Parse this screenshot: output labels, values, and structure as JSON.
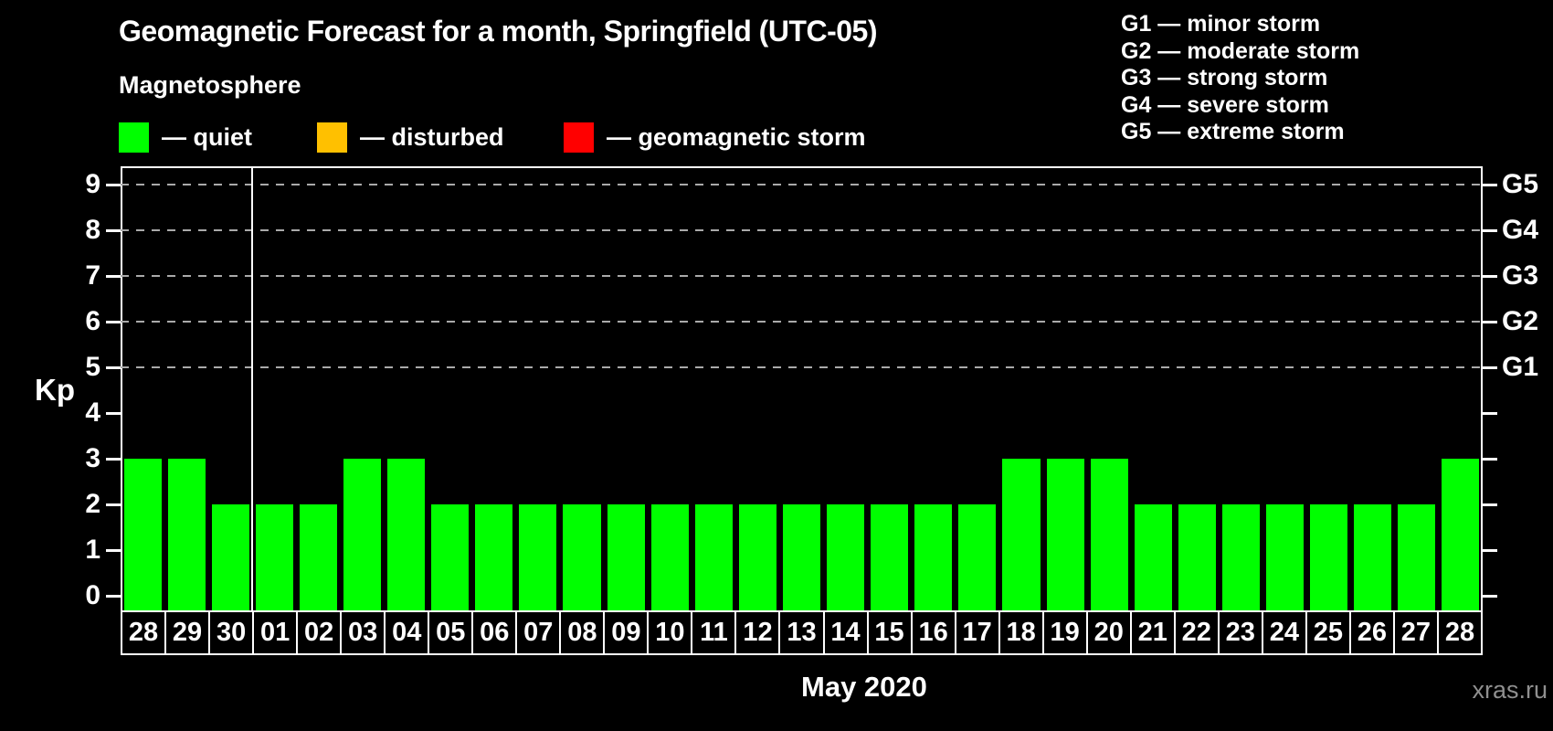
{
  "chart_data": {
    "type": "bar",
    "title": "Geomagnetic Forecast for a month, Springfield (UTC-05)",
    "subtitle": "Magnetosphere",
    "legend": [
      {
        "name": "quiet",
        "label": "— quiet",
        "color": "#00ff00"
      },
      {
        "name": "disturbed",
        "label": "— disturbed",
        "color": "#ffc000"
      },
      {
        "name": "geomagnetic-storm",
        "label": "— geomagnetic storm",
        "color": "#ff0000"
      }
    ],
    "g_scale_legend": [
      "G1 — minor storm",
      "G2 — moderate storm",
      "G3 — strong storm",
      "G4 — severe storm",
      "G5 — extreme storm"
    ],
    "ylabel": "Kp",
    "ylim": [
      0,
      9.4
    ],
    "yticks": [
      0,
      1,
      2,
      3,
      4,
      5,
      6,
      7,
      8,
      9
    ],
    "gridlines_at": [
      5,
      6,
      7,
      8,
      9
    ],
    "right_axis_labels": [
      {
        "kp": 9,
        "label": "G5"
      },
      {
        "kp": 8,
        "label": "G4"
      },
      {
        "kp": 7,
        "label": "G3"
      },
      {
        "kp": 6,
        "label": "G2"
      },
      {
        "kp": 5,
        "label": "G1"
      }
    ],
    "categories": [
      "28",
      "29",
      "30",
      "01",
      "02",
      "03",
      "04",
      "05",
      "06",
      "07",
      "08",
      "09",
      "10",
      "11",
      "12",
      "13",
      "14",
      "15",
      "16",
      "17",
      "18",
      "19",
      "20",
      "21",
      "22",
      "23",
      "24",
      "25",
      "26",
      "27",
      "28"
    ],
    "values": [
      3,
      3,
      2,
      2,
      2,
      3,
      3,
      2,
      2,
      2,
      2,
      2,
      2,
      2,
      2,
      2,
      2,
      2,
      2,
      2,
      3,
      3,
      3,
      2,
      2,
      2,
      2,
      2,
      2,
      2,
      3
    ],
    "separator_after_index": 2,
    "month_label": "May 2020",
    "watermark": "xras.ru",
    "colors": {
      "background": "#000000",
      "text": "#ffffff",
      "grid": "#aaaaaa",
      "axis": "#ffffff",
      "watermark": "#8f8f8f"
    }
  }
}
